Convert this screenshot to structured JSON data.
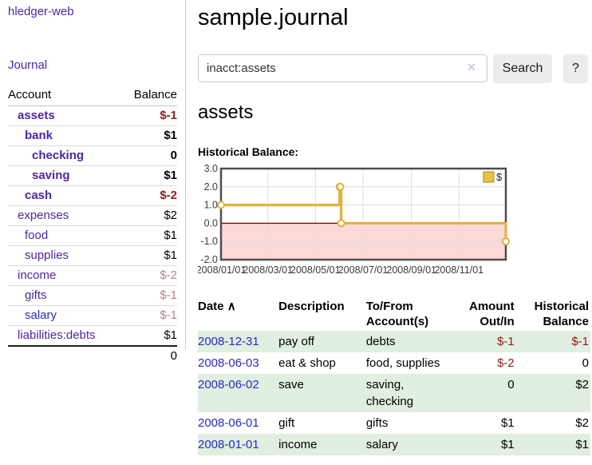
{
  "app": {
    "title": "hledger-web",
    "nav_journal_label": "Journal"
  },
  "colors": {
    "link_purple": "#4b28a0",
    "link_blue": "#2929cc",
    "negative": "#8b1c1c",
    "negative_faded": "#bf8080",
    "row_green": "#e0efdf",
    "chart_line": "#e2b23c",
    "chart_negative_bg": "#fcd9d9",
    "chart_zero_line": "#8b0000",
    "button_bg": "#ececec"
  },
  "sidebar": {
    "header": {
      "account": "Account",
      "balance": "Balance"
    },
    "accounts": [
      {
        "name": "assets",
        "balance": "$-1",
        "depth": 1,
        "bold": true,
        "name_color": "purple",
        "balance_style": "neg"
      },
      {
        "name": "bank",
        "balance": "$1",
        "depth": 2,
        "bold": true,
        "name_color": "purple",
        "balance_style": ""
      },
      {
        "name": "checking",
        "balance": "0",
        "depth": 3,
        "bold": true,
        "name_color": "purple",
        "balance_style": ""
      },
      {
        "name": "saving",
        "balance": "$1",
        "depth": 3,
        "bold": true,
        "name_color": "purple",
        "balance_style": ""
      },
      {
        "name": "cash",
        "balance": "$-2",
        "depth": 2,
        "bold": true,
        "name_color": "purple",
        "balance_style": "neg"
      },
      {
        "name": "expenses",
        "balance": "$2",
        "depth": 1,
        "bold": false,
        "name_color": "purple",
        "balance_style": ""
      },
      {
        "name": "food",
        "balance": "$1",
        "depth": 2,
        "bold": false,
        "name_color": "purple",
        "balance_style": ""
      },
      {
        "name": "supplies",
        "balance": "$1",
        "depth": 2,
        "bold": false,
        "name_color": "purple",
        "balance_style": ""
      },
      {
        "name": "income",
        "balance": "$-2",
        "depth": 1,
        "bold": false,
        "name_color": "purple",
        "balance_style": "negfade"
      },
      {
        "name": "gifts",
        "balance": "$-1",
        "depth": 2,
        "bold": false,
        "name_color": "purple",
        "balance_style": "negfade"
      },
      {
        "name": "salary",
        "balance": "$-1",
        "depth": 2,
        "bold": false,
        "name_color": "blue",
        "balance_style": "negfade"
      },
      {
        "name": "liabilities:debts",
        "balance": "$1",
        "depth": 1,
        "bold": false,
        "name_color": "purple",
        "balance_style": ""
      }
    ],
    "total": "0"
  },
  "header": {
    "title": "sample.journal"
  },
  "search": {
    "value": "inacct:assets",
    "clear_icon": "✕",
    "button_label": "Search",
    "help_label": "?"
  },
  "account_page": {
    "heading": "assets",
    "chart_title": "Historical Balance:"
  },
  "chart_data": {
    "type": "line",
    "title": "Historical Balance:",
    "legend": "$",
    "legend_position": "top-right",
    "step": true,
    "grid": true,
    "ylim": [
      -2,
      3
    ],
    "x_range": [
      "2008-01-01",
      "2008-12-31"
    ],
    "y_ticks": [
      "3.0",
      "2.0",
      "1.0",
      "0.0",
      "-1.0",
      "-2.0"
    ],
    "x_ticks": [
      "2008/01/01",
      "2008/03/01",
      "2008/05/01",
      "2008/07/01",
      "2008/09/01",
      "2008/11/01"
    ],
    "series": [
      {
        "name": "$",
        "points": [
          {
            "date": "2008-01-01",
            "value": 1
          },
          {
            "date": "2008-06-01",
            "value": 2
          },
          {
            "date": "2008-06-02",
            "value": 2
          },
          {
            "date": "2008-06-03",
            "value": 0
          },
          {
            "date": "2008-12-31",
            "value": -1
          }
        ]
      }
    ]
  },
  "register": {
    "headers": {
      "date": "Date",
      "sort_icon": "∧",
      "description": "Description",
      "accounts": "To/From Account(s)",
      "amount": "Amount Out/In",
      "balance": "Historical Balance"
    },
    "rows": [
      {
        "date": "2008-12-31",
        "description": "pay off",
        "accounts_lines": [
          "debts"
        ],
        "amount": "$-1",
        "amount_style": "neg",
        "balance": "$-1",
        "balance_style": "neg",
        "striped": true
      },
      {
        "date": "2008-06-03",
        "description": "eat & shop",
        "accounts_lines": [
          "food, supplies"
        ],
        "amount": "$-2",
        "amount_style": "neg",
        "balance": "0",
        "balance_style": "",
        "striped": false
      },
      {
        "date": "2008-06-02",
        "description": "save",
        "accounts_lines": [
          "saving,",
          "checking"
        ],
        "amount": "0",
        "amount_style": "",
        "balance": "$2",
        "balance_style": "",
        "striped": true
      },
      {
        "date": "2008-06-01",
        "description": "gift",
        "accounts_lines": [
          "gifts"
        ],
        "amount": "$1",
        "amount_style": "",
        "balance": "$2",
        "balance_style": "",
        "striped": false
      },
      {
        "date": "2008-01-01",
        "description": "income",
        "accounts_lines": [
          "salary"
        ],
        "amount": "$1",
        "amount_style": "",
        "balance": "$1",
        "balance_style": "",
        "striped": true
      }
    ]
  }
}
